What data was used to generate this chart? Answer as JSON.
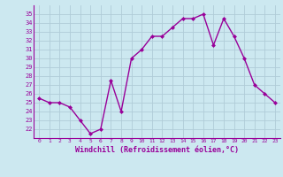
{
  "x": [
    0,
    1,
    2,
    3,
    4,
    5,
    6,
    7,
    8,
    9,
    10,
    11,
    12,
    13,
    14,
    15,
    16,
    17,
    18,
    19,
    20,
    21,
    22,
    23
  ],
  "y": [
    25.5,
    25.0,
    25.0,
    24.5,
    23.0,
    21.5,
    22.0,
    27.5,
    24.0,
    30.0,
    31.0,
    32.5,
    32.5,
    33.5,
    34.5,
    34.5,
    35.0,
    31.5,
    34.5,
    32.5,
    30.0,
    27.0,
    26.0,
    25.0
  ],
  "line_color": "#990099",
  "marker": "D",
  "marker_size": 2,
  "bg_color": "#cce8f0",
  "grid_color": "#b0ccd8",
  "xlabel": "Windchill (Refroidissement éolien,°C)",
  "xlabel_color": "#990099",
  "tick_color": "#990099",
  "ylim": [
    21.0,
    36.0
  ],
  "xlim": [
    -0.5,
    23.5
  ],
  "yticks": [
    22,
    23,
    24,
    25,
    26,
    27,
    28,
    29,
    30,
    31,
    32,
    33,
    34,
    35
  ],
  "xticks": [
    0,
    1,
    2,
    3,
    4,
    5,
    6,
    7,
    8,
    9,
    10,
    11,
    12,
    13,
    14,
    15,
    16,
    17,
    18,
    19,
    20,
    21,
    22,
    23
  ],
  "spine_color": "#990099",
  "linewidth": 1.0
}
